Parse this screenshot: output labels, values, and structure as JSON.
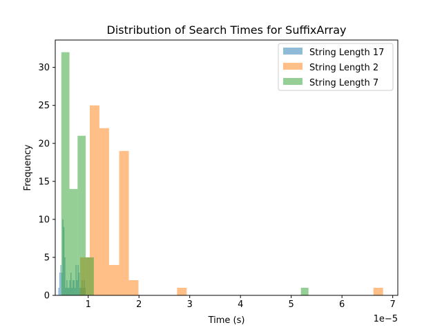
{
  "chart_data": {
    "type": "bar",
    "title": "Distribution of Search Times for SuffixArray",
    "xlabel": "Time (s)",
    "ylabel": "Frequency",
    "x_offset_label": "1e−5",
    "xlim": [
      0.35,
      7.1
    ],
    "ylim": [
      0,
      33.6
    ],
    "x_ticks": [
      1,
      2,
      3,
      4,
      5,
      6,
      7
    ],
    "x_tick_labels": [
      "1",
      "2",
      "3",
      "4",
      "5",
      "6",
      "7"
    ],
    "y_ticks": [
      0,
      5,
      10,
      15,
      20,
      25,
      30
    ],
    "y_tick_labels": [
      "0",
      "5",
      "10",
      "15",
      "20",
      "25",
      "30"
    ],
    "grid": false,
    "legend_position": "top-right",
    "series": [
      {
        "name": "String Length 17",
        "color": "#1f77b4",
        "bins": [
          [
            0.41,
            0.43,
            1
          ],
          [
            0.43,
            0.45,
            3
          ],
          [
            0.45,
            0.47,
            4
          ],
          [
            0.47,
            0.49,
            3
          ],
          [
            0.49,
            0.51,
            10
          ],
          [
            0.51,
            0.53,
            9
          ],
          [
            0.53,
            0.55,
            5
          ],
          [
            0.55,
            0.57,
            1
          ],
          [
            0.57,
            0.59,
            2
          ],
          [
            0.59,
            0.61,
            1
          ],
          [
            0.61,
            0.63,
            1
          ],
          [
            0.63,
            0.65,
            2
          ],
          [
            0.65,
            0.67,
            3
          ],
          [
            0.67,
            0.69,
            1
          ],
          [
            0.69,
            0.71,
            2
          ],
          [
            0.71,
            0.73,
            2
          ],
          [
            0.73,
            0.75,
            1
          ],
          [
            0.75,
            0.77,
            4
          ],
          [
            0.77,
            0.79,
            2
          ],
          [
            0.79,
            0.81,
            4
          ],
          [
            0.81,
            0.83,
            3
          ],
          [
            0.83,
            0.85,
            1
          ],
          [
            0.85,
            0.87,
            1
          ],
          [
            0.87,
            0.89,
            2
          ],
          [
            0.89,
            0.91,
            1
          ],
          [
            0.91,
            0.93,
            2
          ],
          [
            0.93,
            0.95,
            1
          ]
        ]
      },
      {
        "name": "String Length 2",
        "color": "#ff7f0e",
        "bins": [
          [
            0.84,
            1.03,
            5
          ],
          [
            1.03,
            1.22,
            25
          ],
          [
            1.22,
            1.41,
            22
          ],
          [
            1.41,
            1.61,
            4
          ],
          [
            1.61,
            1.8,
            19
          ],
          [
            1.8,
            1.99,
            2
          ],
          [
            2.75,
            2.94,
            1
          ],
          [
            6.62,
            6.81,
            1
          ]
        ]
      },
      {
        "name": "String Length 7",
        "color": "#2ca02c",
        "bins": [
          [
            0.47,
            0.63,
            32
          ],
          [
            0.63,
            0.79,
            14
          ],
          [
            0.79,
            0.95,
            21
          ],
          [
            0.95,
            1.11,
            5
          ],
          [
            5.19,
            5.34,
            1
          ]
        ]
      }
    ]
  }
}
